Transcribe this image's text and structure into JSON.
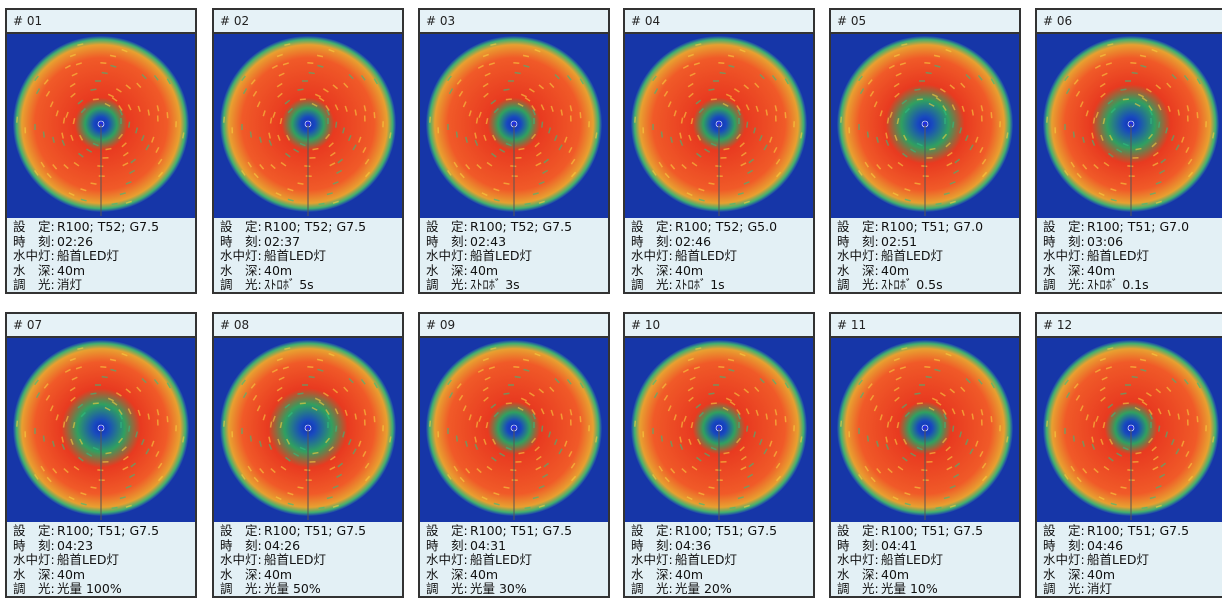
{
  "field_labels": [
    "設　定:",
    "時　刻:",
    "水中灯:",
    "水　深:",
    "調　光:"
  ],
  "panels": [
    {
      "id": "# 01",
      "values": [
        "R100; T52; G7.5",
        "02:26",
        "船首LED灯",
        "40m",
        "消灯"
      ]
    },
    {
      "id": "# 02",
      "values": [
        "R100; T52; G7.5",
        "02:37",
        "船首LED灯",
        "40m",
        "ｽﾄﾛﾎﾞ 5s"
      ]
    },
    {
      "id": "# 03",
      "values": [
        "R100; T52; G7.5",
        "02:43",
        "船首LED灯",
        "40m",
        "ｽﾄﾛﾎﾞ 3s"
      ]
    },
    {
      "id": "# 04",
      "values": [
        "R100; T52; G5.0",
        "02:46",
        "船首LED灯",
        "40m",
        "ｽﾄﾛﾎﾞ 1s"
      ]
    },
    {
      "id": "# 05",
      "values": [
        "R100; T51; G7.0",
        "02:51",
        "船首LED灯",
        "40m",
        "ｽﾄﾛﾎﾞ 0.5s"
      ]
    },
    {
      "id": "# 06",
      "values": [
        "R100; T51; G7.0",
        "03:06",
        "船首LED灯",
        "40m",
        "ｽﾄﾛﾎﾞ 0.1s"
      ]
    },
    {
      "id": "# 07",
      "values": [
        "R100; T51; G7.5",
        "04:23",
        "船首LED灯",
        "40m",
        "光量 100%"
      ]
    },
    {
      "id": "# 08",
      "values": [
        "R100; T51; G7.5",
        "04:26",
        "船首LED灯",
        "40m",
        "光量 50%"
      ]
    },
    {
      "id": "# 09",
      "values": [
        "R100; T51; G7.5",
        "04:31",
        "船首LED灯",
        "40m",
        "光量 30%"
      ]
    },
    {
      "id": "# 10",
      "values": [
        "R100; T51; G7.5",
        "04:36",
        "船首LED灯",
        "40m",
        "光量 20%"
      ]
    },
    {
      "id": "# 11",
      "values": [
        "R100; T51; G7.5",
        "04:41",
        "船首LED灯",
        "40m",
        "光量 10%"
      ]
    },
    {
      "id": "# 12",
      "values": [
        "R100; T51; G7.5",
        "04:46",
        "船首LED灯",
        "40m",
        "消灯"
      ]
    }
  ]
}
